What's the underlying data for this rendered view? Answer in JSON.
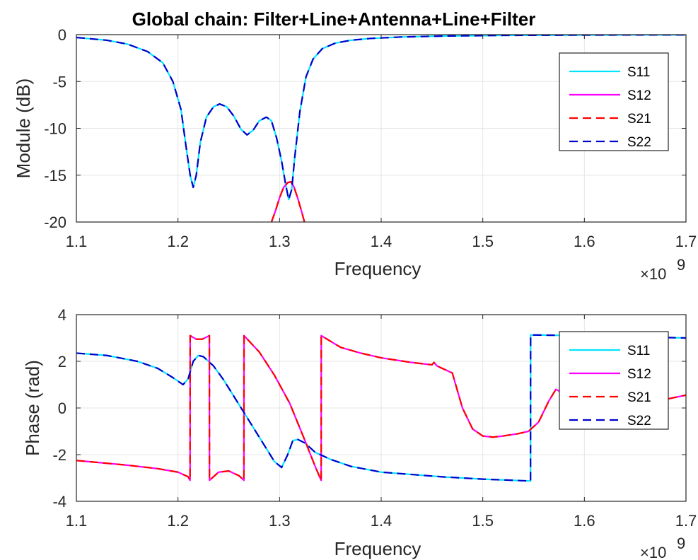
{
  "title": "Global chain: Filter+Line+Antenna+Line+Filter",
  "chart_data": [
    {
      "type": "line",
      "xlabel": "Frequency",
      "ylabel": "Module (dB)",
      "x_multiplier": "×10",
      "x_multiplier_exp": "9",
      "xlim": [
        1100000000.0,
        1700000000.0
      ],
      "ylim": [
        -20,
        0
      ],
      "xticks": [
        1100000000.0,
        1200000000.0,
        1300000000.0,
        1400000000.0,
        1500000000.0,
        1600000000.0,
        1700000000.0
      ],
      "xtick_labels": [
        "1.1",
        "1.2",
        "1.3",
        "1.4",
        "1.5",
        "1.6",
        "1.7"
      ],
      "yticks": [
        -20,
        -15,
        -10,
        -5,
        0
      ],
      "ytick_labels": [
        "-20",
        "-15",
        "-10",
        "-5",
        "0"
      ],
      "grid": true,
      "legend_position": "top-right",
      "series": [
        {
          "name": "S11",
          "color": "#00e5ff",
          "dash": "solid",
          "x": [
            1100000000.0,
            1130000000.0,
            1150000000.0,
            1170000000.0,
            1185000000.0,
            1195000000.0,
            1203000000.0,
            1208000000.0,
            1212000000.0,
            1215000000.0,
            1218000000.0,
            1222000000.0,
            1228000000.0,
            1235000000.0,
            1241000000.0,
            1248000000.0,
            1255000000.0,
            1262000000.0,
            1268000000.0,
            1274000000.0,
            1280000000.0,
            1287000000.0,
            1292000000.0,
            1297000000.0,
            1302000000.0,
            1306000000.0,
            1309000000.0,
            1312000000.0,
            1315000000.0,
            1320000000.0,
            1326000000.0,
            1333000000.0,
            1342000000.0,
            1355000000.0,
            1370000000.0,
            1390000000.0,
            1420000000.0,
            1460000000.0,
            1520000000.0,
            1600000000.0,
            1700000000.0
          ],
          "y": [
            -0.3,
            -0.6,
            -1,
            -1.8,
            -3,
            -5,
            -8,
            -12,
            -15,
            -16.3,
            -15,
            -11.5,
            -8.8,
            -7.7,
            -7.4,
            -7.7,
            -8.7,
            -10.1,
            -10.7,
            -10.2,
            -9.2,
            -8.8,
            -9.2,
            -11,
            -13.5,
            -16,
            -17.6,
            -16.5,
            -13,
            -8.2,
            -4.5,
            -2.6,
            -1.5,
            -0.9,
            -0.6,
            -0.4,
            -0.25,
            -0.15,
            -0.08,
            -0.04,
            -0.02
          ]
        },
        {
          "name": "S12",
          "color": "#ff00ff",
          "dash": "solid",
          "x": [
            1292000000.0,
            1296000000.0,
            1300000000.0,
            1304000000.0,
            1308000000.0,
            1311000000.0,
            1314000000.0,
            1318000000.0,
            1322000000.0,
            1325000000.0
          ],
          "y": [
            -20,
            -18.8,
            -17.4,
            -16.3,
            -15.8,
            -15.7,
            -16.2,
            -17.5,
            -19,
            -20.2
          ]
        },
        {
          "name": "S21",
          "color": "#ff0000",
          "dash": "dashed",
          "x": [
            1292000000.0,
            1296000000.0,
            1300000000.0,
            1304000000.0,
            1308000000.0,
            1311000000.0,
            1314000000.0,
            1318000000.0,
            1322000000.0,
            1325000000.0
          ],
          "y": [
            -20,
            -18.8,
            -17.4,
            -16.3,
            -15.8,
            -15.7,
            -16.2,
            -17.5,
            -19,
            -20.2
          ]
        },
        {
          "name": "S22",
          "color": "#0000cc",
          "dash": "dashed",
          "x": [
            1100000000.0,
            1130000000.0,
            1150000000.0,
            1170000000.0,
            1185000000.0,
            1195000000.0,
            1203000000.0,
            1208000000.0,
            1212000000.0,
            1215000000.0,
            1218000000.0,
            1222000000.0,
            1228000000.0,
            1235000000.0,
            1241000000.0,
            1248000000.0,
            1255000000.0,
            1262000000.0,
            1268000000.0,
            1274000000.0,
            1280000000.0,
            1287000000.0,
            1292000000.0,
            1297000000.0,
            1302000000.0,
            1306000000.0,
            1309000000.0,
            1312000000.0,
            1315000000.0,
            1320000000.0,
            1326000000.0,
            1333000000.0,
            1342000000.0,
            1355000000.0,
            1370000000.0,
            1390000000.0,
            1420000000.0,
            1460000000.0,
            1520000000.0,
            1600000000.0,
            1700000000.0
          ],
          "y": [
            -0.3,
            -0.6,
            -1,
            -1.8,
            -3,
            -5,
            -8,
            -12,
            -15,
            -16.3,
            -15,
            -11.5,
            -8.8,
            -7.7,
            -7.4,
            -7.7,
            -8.7,
            -10.1,
            -10.7,
            -10.2,
            -9.2,
            -8.8,
            -9.2,
            -11,
            -13.5,
            -16,
            -17.6,
            -16.5,
            -13,
            -8.2,
            -4.5,
            -2.6,
            -1.5,
            -0.9,
            -0.6,
            -0.4,
            -0.25,
            -0.15,
            -0.08,
            -0.04,
            -0.02
          ]
        }
      ]
    },
    {
      "type": "line",
      "xlabel": "Frequency",
      "ylabel": "Phase (rad)",
      "x_multiplier": "×10",
      "x_multiplier_exp": "9",
      "xlim": [
        1100000000.0,
        1700000000.0
      ],
      "ylim": [
        -4,
        4
      ],
      "xticks": [
        1100000000.0,
        1200000000.0,
        1300000000.0,
        1400000000.0,
        1500000000.0,
        1600000000.0,
        1700000000.0
      ],
      "xtick_labels": [
        "1.1",
        "1.2",
        "1.3",
        "1.4",
        "1.5",
        "1.6",
        "1.7"
      ],
      "yticks": [
        -4,
        -2,
        0,
        2,
        4
      ],
      "ytick_labels": [
        "-4",
        "-2",
        "0",
        "2",
        "4"
      ],
      "grid": true,
      "legend_position": "top-right",
      "series": [
        {
          "name": "S11",
          "color": "#00e5ff",
          "dash": "solid",
          "x": [
            1100000000.0,
            1130000000.0,
            1160000000.0,
            1180000000.0,
            1195000000.0,
            1205000000.0,
            1210000000.0,
            1215000000.0,
            1220000000.0,
            1225000000.0,
            1235000000.0,
            1245000000.0,
            1255000000.0,
            1265000000.0,
            1275000000.0,
            1285000000.0,
            1295000000.0,
            1302000000.0,
            1308000000.0,
            1313000000.0,
            1318000000.0,
            1325000000.0,
            1335000000.0,
            1350000000.0,
            1370000000.0,
            1400000000.0,
            1430000000.0,
            1460000000.0,
            1500000000.0,
            1530000000.0,
            1547000000.0,
            1547100000.0,
            1600000000.0,
            1650000000.0,
            1700000000.0
          ],
          "y": [
            2.35,
            2.25,
            2.0,
            1.7,
            1.3,
            1.0,
            1.25,
            2.0,
            2.25,
            2.2,
            1.8,
            1.2,
            0.5,
            -0.2,
            -0.9,
            -1.6,
            -2.3,
            -2.55,
            -2.0,
            -1.4,
            -1.35,
            -1.5,
            -1.9,
            -2.2,
            -2.5,
            -2.75,
            -2.85,
            -2.95,
            -3.05,
            -3.1,
            -3.13,
            3.13,
            3.1,
            3.05,
            3.0
          ]
        },
        {
          "name": "S12",
          "color": "#ff00ff",
          "dash": "solid",
          "x": [
            1100000000.0,
            1150000000.0,
            1180000000.0,
            1200000000.0,
            1210000000.0,
            1211900000.0,
            1212000000.0,
            1218000000.0,
            1224000000.0,
            1230900000.0,
            1231000000.0,
            1240000000.0,
            1250000000.0,
            1260000000.0,
            1264900000.0,
            1265000000.0,
            1280000000.0,
            1295000000.0,
            1310000000.0,
            1325000000.0,
            1335000000.0,
            1340900000.0,
            1341000000.0,
            1360000000.0,
            1380000000.0,
            1400000000.0,
            1430000000.0,
            1450000000.0,
            1452000000.0,
            1455000000.0,
            1470000000.0,
            1480000000.0,
            1490000000.0,
            1500000000.0,
            1510000000.0,
            1520000000.0,
            1535000000.0,
            1545000000.0,
            1555000000.0,
            1565000000.0,
            1572000000.0,
            1580000000.0,
            1590000000.0,
            1600000000.0,
            1620000000.0,
            1650000000.0,
            1700000000.0
          ],
          "y": [
            -2.25,
            -2.45,
            -2.6,
            -2.75,
            -2.95,
            -3.1,
            3.1,
            2.95,
            2.95,
            3.1,
            -3.1,
            -2.75,
            -2.7,
            -2.9,
            -3.1,
            3.1,
            2.4,
            1.4,
            0.2,
            -1.4,
            -2.5,
            -3.1,
            3.1,
            2.6,
            2.35,
            2.15,
            1.95,
            1.85,
            1.95,
            1.8,
            1.5,
            0.0,
            -0.9,
            -1.2,
            -1.25,
            -1.2,
            -1.1,
            -1.0,
            -0.6,
            0.3,
            0.8,
            0.6,
            0.1,
            -0.3,
            -0.2,
            0.1,
            0.55
          ]
        },
        {
          "name": "S21",
          "color": "#ff0000",
          "dash": "dashed",
          "x": [
            1100000000.0,
            1150000000.0,
            1180000000.0,
            1200000000.0,
            1210000000.0,
            1211900000.0,
            1212000000.0,
            1218000000.0,
            1224000000.0,
            1230900000.0,
            1231000000.0,
            1240000000.0,
            1250000000.0,
            1260000000.0,
            1264900000.0,
            1265000000.0,
            1280000000.0,
            1295000000.0,
            1310000000.0,
            1325000000.0,
            1335000000.0,
            1340900000.0,
            1341000000.0,
            1360000000.0,
            1380000000.0,
            1400000000.0,
            1430000000.0,
            1450000000.0,
            1452000000.0,
            1455000000.0,
            1470000000.0,
            1480000000.0,
            1490000000.0,
            1500000000.0,
            1510000000.0,
            1520000000.0,
            1535000000.0,
            1545000000.0,
            1555000000.0,
            1565000000.0,
            1572000000.0,
            1580000000.0,
            1590000000.0,
            1600000000.0,
            1620000000.0,
            1650000000.0,
            1700000000.0
          ],
          "y": [
            -2.25,
            -2.45,
            -2.6,
            -2.75,
            -2.95,
            -3.1,
            3.1,
            2.95,
            2.95,
            3.1,
            -3.1,
            -2.75,
            -2.7,
            -2.9,
            -3.1,
            3.1,
            2.4,
            1.4,
            0.2,
            -1.4,
            -2.5,
            -3.1,
            3.1,
            2.6,
            2.35,
            2.15,
            1.95,
            1.85,
            1.95,
            1.8,
            1.5,
            0.0,
            -0.9,
            -1.2,
            -1.25,
            -1.2,
            -1.1,
            -1.0,
            -0.6,
            0.3,
            0.8,
            0.6,
            0.1,
            -0.3,
            -0.2,
            0.1,
            0.55
          ]
        },
        {
          "name": "S22",
          "color": "#0000cc",
          "dash": "dashed",
          "x": [
            1100000000.0,
            1130000000.0,
            1160000000.0,
            1180000000.0,
            1195000000.0,
            1205000000.0,
            1210000000.0,
            1215000000.0,
            1220000000.0,
            1225000000.0,
            1235000000.0,
            1245000000.0,
            1255000000.0,
            1265000000.0,
            1275000000.0,
            1285000000.0,
            1295000000.0,
            1302000000.0,
            1308000000.0,
            1313000000.0,
            1318000000.0,
            1325000000.0,
            1335000000.0,
            1350000000.0,
            1370000000.0,
            1400000000.0,
            1430000000.0,
            1460000000.0,
            1500000000.0,
            1530000000.0,
            1547000000.0,
            1547100000.0,
            1600000000.0,
            1650000000.0,
            1700000000.0
          ],
          "y": [
            2.35,
            2.25,
            2.0,
            1.7,
            1.3,
            1.0,
            1.25,
            2.0,
            2.25,
            2.2,
            1.8,
            1.2,
            0.5,
            -0.2,
            -0.9,
            -1.6,
            -2.3,
            -2.55,
            -2.0,
            -1.4,
            -1.35,
            -1.5,
            -1.9,
            -2.2,
            -2.5,
            -2.75,
            -2.85,
            -2.95,
            -3.05,
            -3.1,
            -3.13,
            3.13,
            3.1,
            3.05,
            3.0
          ]
        }
      ]
    }
  ]
}
